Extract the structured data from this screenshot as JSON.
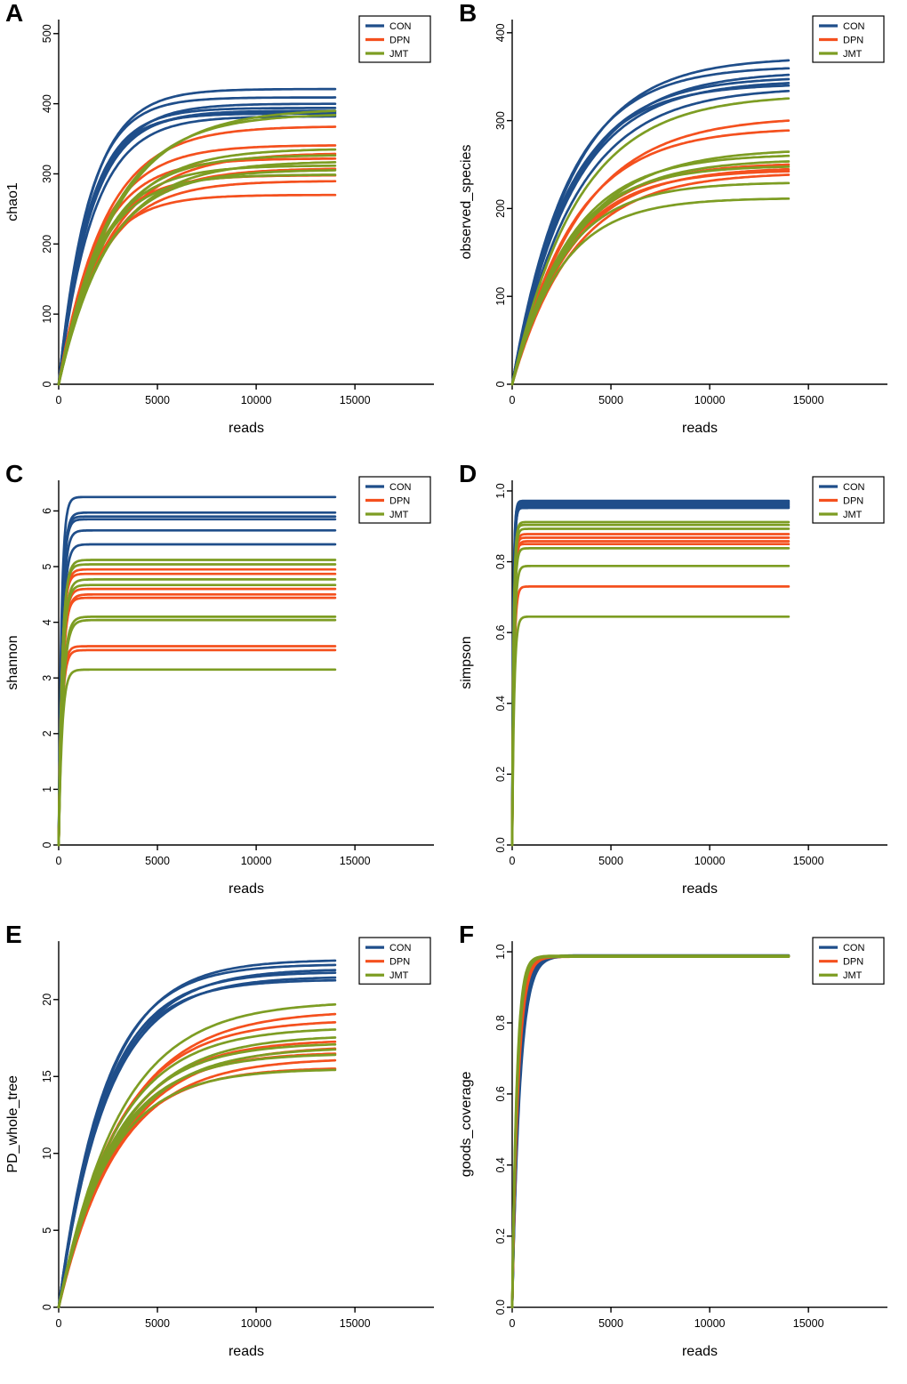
{
  "figure": {
    "xlabel": "reads",
    "legend": [
      "CON",
      "DPN",
      "JMT"
    ],
    "colors": {
      "CON": "#1f4e8a",
      "DPN": "#f4501e",
      "JMT": "#7d9d23"
    },
    "axis_color": "#000000",
    "background": "#ffffff"
  },
  "chart_data": [
    {
      "type": "line",
      "panel": "A",
      "ylabel": "chao1",
      "xlabel": "reads",
      "xlim": [
        0,
        19000
      ],
      "ylim": [
        0,
        520
      ],
      "x_end": 14000,
      "xticks": [
        0,
        5000,
        10000,
        15000
      ],
      "xtick_labels": [
        "0",
        "5000",
        "10000",
        "15000"
      ],
      "yticks": [
        0,
        100,
        200,
        300,
        400,
        500
      ],
      "ytick_labels": [
        "0",
        "100",
        "200",
        "300",
        "400",
        "500"
      ],
      "legend": [
        "CON",
        "DPN",
        "JMT"
      ],
      "series": [
        {
          "name": "CON",
          "curves": [
            [
              421,
              1600
            ],
            [
              409,
              1500
            ],
            [
              400,
              1700
            ],
            [
              394,
              1550
            ],
            [
              390,
              1650
            ],
            [
              386,
              1500
            ],
            [
              382,
              1750
            ],
            [
              388,
              1600
            ]
          ]
        },
        {
          "name": "DPN",
          "curves": [
            [
              368,
              2300
            ],
            [
              341,
              2100
            ],
            [
              330,
              2600
            ],
            [
              322,
              2000
            ],
            [
              308,
              2400
            ],
            [
              298,
              1900
            ],
            [
              290,
              2200
            ],
            [
              270,
              1800
            ]
          ]
        },
        {
          "name": "JMT",
          "curves": [
            [
              393,
              2900
            ],
            [
              386,
              2700
            ],
            [
              336,
              2500
            ],
            [
              327,
              2300
            ],
            [
              318,
              2600
            ],
            [
              312,
              2100
            ],
            [
              306,
              2400
            ],
            [
              299,
              2000
            ]
          ]
        }
      ]
    },
    {
      "type": "line",
      "panel": "B",
      "ylabel": "observed_species",
      "xlabel": "reads",
      "xlim": [
        0,
        19000
      ],
      "ylim": [
        0,
        415
      ],
      "x_end": 14000,
      "xticks": [
        0,
        5000,
        10000,
        15000
      ],
      "xtick_labels": [
        "0",
        "5000",
        "10000",
        "15000"
      ],
      "yticks": [
        0,
        100,
        200,
        300,
        400
      ],
      "ytick_labels": [
        "0",
        "100",
        "200",
        "300",
        "400"
      ],
      "legend": [
        "CON",
        "DPN",
        "JMT"
      ],
      "series": [
        {
          "name": "CON",
          "curves": [
            [
              372,
              3000
            ],
            [
              362,
              2800
            ],
            [
              356,
              3100
            ],
            [
              350,
              2900
            ],
            [
              346,
              3000
            ],
            [
              342,
              2750
            ],
            [
              338,
              3200
            ]
          ]
        },
        {
          "name": "DPN",
          "curves": [
            [
              305,
              3400
            ],
            [
              292,
              3100
            ],
            [
              252,
              2900
            ],
            [
              247,
              3000
            ],
            [
              244,
              2800
            ],
            [
              241,
              3100
            ]
          ]
        },
        {
          "name": "JMT",
          "curves": [
            [
              330,
              3300
            ],
            [
              268,
              3200
            ],
            [
              262,
              2900
            ],
            [
              256,
              3000
            ],
            [
              249,
              2700
            ],
            [
              230,
              2600
            ],
            [
              212,
              2500
            ]
          ]
        }
      ]
    },
    {
      "type": "line",
      "panel": "C",
      "ylabel": "shannon",
      "xlabel": "reads",
      "xlim": [
        0,
        19000
      ],
      "ylim": [
        0,
        6.55
      ],
      "x_end": 14000,
      "xticks": [
        0,
        5000,
        10000,
        15000
      ],
      "xtick_labels": [
        "0",
        "5000",
        "10000",
        "15000"
      ],
      "yticks": [
        0,
        1,
        2,
        3,
        4,
        5,
        6
      ],
      "ytick_labels": [
        "0",
        "1",
        "2",
        "3",
        "4",
        "5",
        "6"
      ],
      "legend": [
        "CON",
        "DPN",
        "JMT"
      ],
      "series": [
        {
          "name": "CON",
          "curves": [
            [
              6.25,
              140
            ],
            [
              5.97,
              160
            ],
            [
              5.9,
              150
            ],
            [
              5.85,
              155
            ],
            [
              5.65,
              170
            ],
            [
              5.4,
              180
            ]
          ]
        },
        {
          "name": "DPN",
          "curves": [
            [
              4.95,
              170
            ],
            [
              4.87,
              160
            ],
            [
              4.6,
              180
            ],
            [
              4.5,
              190
            ],
            [
              4.44,
              175
            ],
            [
              3.57,
              150
            ],
            [
              3.5,
              160
            ]
          ]
        },
        {
          "name": "JMT",
          "curves": [
            [
              5.12,
              180
            ],
            [
              5.04,
              170
            ],
            [
              4.77,
              190
            ],
            [
              4.67,
              185
            ],
            [
              4.1,
              200
            ],
            [
              4.04,
              210
            ],
            [
              3.15,
              170
            ]
          ]
        }
      ]
    },
    {
      "type": "line",
      "panel": "D",
      "ylabel": "simpson",
      "xlabel": "reads",
      "xlim": [
        0,
        19000
      ],
      "ylim": [
        0,
        1.03
      ],
      "x_end": 14000,
      "xticks": [
        0,
        5000,
        10000,
        15000
      ],
      "xtick_labels": [
        "0",
        "5000",
        "10000",
        "15000"
      ],
      "yticks": [
        0,
        0.2,
        0.4,
        0.6,
        0.8,
        1.0
      ],
      "ytick_labels": [
        "0.0",
        "0.2",
        "0.4",
        "0.6",
        "0.8",
        "1.0"
      ],
      "legend": [
        "CON",
        "DPN",
        "JMT"
      ],
      "series": [
        {
          "name": "CON",
          "curves": [
            [
              0.972,
              60
            ],
            [
              0.968,
              65
            ],
            [
              0.964,
              55
            ],
            [
              0.96,
              70
            ],
            [
              0.956,
              60
            ],
            [
              0.952,
              65
            ]
          ]
        },
        {
          "name": "DPN",
          "curves": [
            [
              0.878,
              80
            ],
            [
              0.868,
              75
            ],
            [
              0.858,
              85
            ],
            [
              0.85,
              70
            ],
            [
              0.73,
              90
            ]
          ]
        },
        {
          "name": "JMT",
          "curves": [
            [
              0.912,
              75
            ],
            [
              0.904,
              70
            ],
            [
              0.893,
              80
            ],
            [
              0.838,
              85
            ],
            [
              0.788,
              95
            ],
            [
              0.645,
              100
            ]
          ]
        }
      ]
    },
    {
      "type": "line",
      "panel": "E",
      "ylabel": "PD_whole_tree",
      "xlabel": "reads",
      "xlim": [
        0,
        19000
      ],
      "ylim": [
        0,
        23.8
      ],
      "x_end": 14000,
      "xticks": [
        0,
        5000,
        10000,
        15000
      ],
      "xtick_labels": [
        "0",
        "5000",
        "10000",
        "15000"
      ],
      "yticks": [
        0,
        5,
        10,
        15,
        20
      ],
      "ytick_labels": [
        "0",
        "5",
        "10",
        "15",
        "20"
      ],
      "legend": [
        "CON",
        "DPN",
        "JMT"
      ],
      "series": [
        {
          "name": "CON",
          "curves": [
            [
              22.6,
              2400
            ],
            [
              22.3,
              2300
            ],
            [
              22.0,
              2500
            ],
            [
              21.8,
              2350
            ],
            [
              21.5,
              2450
            ],
            [
              21.3,
              2300
            ]
          ]
        },
        {
          "name": "DPN",
          "curves": [
            [
              19.3,
              3200
            ],
            [
              18.7,
              3000
            ],
            [
              17.4,
              2900
            ],
            [
              17.0,
              3100
            ],
            [
              16.6,
              2800
            ],
            [
              16.2,
              3000
            ],
            [
              15.6,
              2700
            ]
          ]
        },
        {
          "name": "JMT",
          "curves": [
            [
              19.9,
              3100
            ],
            [
              18.2,
              2900
            ],
            [
              17.7,
              3000
            ],
            [
              17.2,
              2800
            ],
            [
              16.9,
              2950
            ],
            [
              16.5,
              2700
            ],
            [
              15.5,
              2600
            ]
          ]
        }
      ]
    },
    {
      "type": "line",
      "panel": "F",
      "ylabel": "goods_coverage",
      "xlabel": "reads",
      "xlim": [
        0,
        19000
      ],
      "ylim": [
        0,
        1.03
      ],
      "x_end": 14000,
      "xticks": [
        0,
        5000,
        10000,
        15000
      ],
      "xtick_labels": [
        "0",
        "5000",
        "10000",
        "15000"
      ],
      "yticks": [
        0,
        0.2,
        0.4,
        0.6,
        0.8,
        1.0
      ],
      "ytick_labels": [
        "0.0",
        "0.2",
        "0.4",
        "0.6",
        "0.8",
        "1.0"
      ],
      "legend": [
        "CON",
        "DPN",
        "JMT"
      ],
      "series": [
        {
          "name": "CON",
          "curves": [
            [
              0.99,
              380
            ],
            [
              0.989,
              350
            ],
            [
              0.988,
              400
            ],
            [
              0.987,
              360
            ]
          ]
        },
        {
          "name": "DPN",
          "curves": [
            [
              0.988,
              300
            ],
            [
              0.987,
              280
            ],
            [
              0.986,
              310
            ]
          ]
        },
        {
          "name": "JMT",
          "curves": [
            [
              0.989,
              250
            ],
            [
              0.988,
              230
            ],
            [
              0.987,
              260
            ],
            [
              0.986,
              240
            ]
          ]
        }
      ]
    }
  ]
}
